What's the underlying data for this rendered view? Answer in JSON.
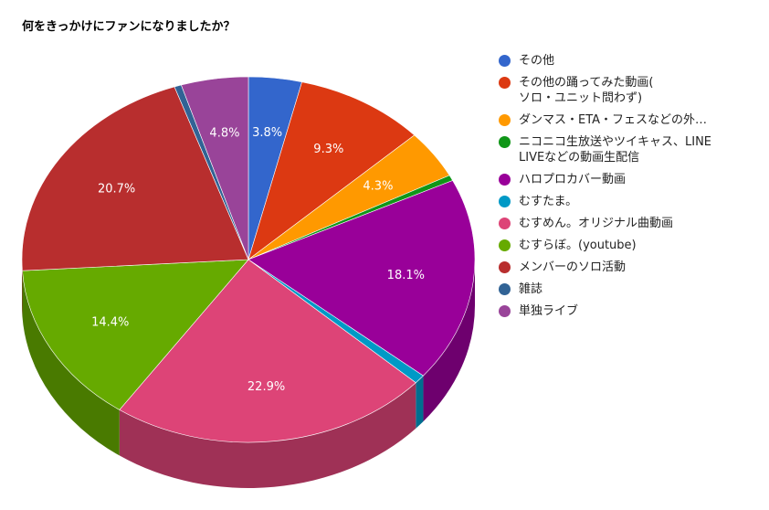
{
  "chart_data": {
    "type": "pie",
    "title": "何をきっかけにファンになりましたか？",
    "legend_position": "right",
    "slices": [
      {
        "label": "その他",
        "value": 3.8,
        "value_label": "3.8%",
        "color": "#3366cc"
      },
      {
        "label": "その他の踊ってみた動画(\nソロ・ユニット問わず)",
        "value": 9.3,
        "value_label": "9.3%",
        "color": "#dc3912"
      },
      {
        "label": "ダンマス・ETA・フェスなどの外…",
        "value": 4.3,
        "value_label": "4.3%",
        "color": "#ff9900"
      },
      {
        "label": "ニコニコ生放送やツイキャス、LINE\nLIVEなどの動画生配信",
        "value": 0.5,
        "value_label": "",
        "color": "#109618"
      },
      {
        "label": "ハロプロカバー動画",
        "value": 18.1,
        "value_label": "18.1%",
        "color": "#990099"
      },
      {
        "label": "むすたま。",
        "value": 0.8,
        "value_label": "",
        "color": "#0099c6"
      },
      {
        "label": "むすめん。オリジナル曲動画",
        "value": 22.9,
        "value_label": "22.9%",
        "color": "#dd4477"
      },
      {
        "label": "むすらぼ。(youtube)",
        "value": 14.4,
        "value_label": "14.4%",
        "color": "#66aa00"
      },
      {
        "label": "メンバーのソロ活動",
        "value": 20.7,
        "value_label": "20.7%",
        "color": "#b82e2e"
      },
      {
        "label": "雑誌",
        "value": 0.5,
        "value_label": "",
        "color": "#316395"
      },
      {
        "label": "単独ライブ",
        "value": 4.8,
        "value_label": "4.8%",
        "color": "#994499"
      }
    ]
  }
}
